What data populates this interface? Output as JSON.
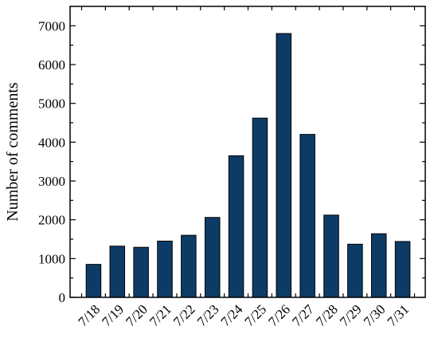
{
  "chart_data": {
    "type": "bar",
    "categories": [
      "7/18",
      "7/19",
      "7/20",
      "7/21",
      "7/22",
      "7/23",
      "7/24",
      "7/25",
      "7/26",
      "7/27",
      "7/28",
      "7/29",
      "7/30",
      "7/31"
    ],
    "values": [
      850,
      1320,
      1290,
      1450,
      1600,
      2060,
      3650,
      4620,
      6800,
      4200,
      2120,
      1370,
      1640,
      1440
    ],
    "xlabel": "",
    "ylabel": "Number of comments",
    "ylim": [
      0,
      7500
    ],
    "yticks": [
      0,
      1000,
      2000,
      3000,
      4000,
      5000,
      6000,
      7000
    ],
    "grid": false,
    "bar_color": "#0c3c66"
  }
}
